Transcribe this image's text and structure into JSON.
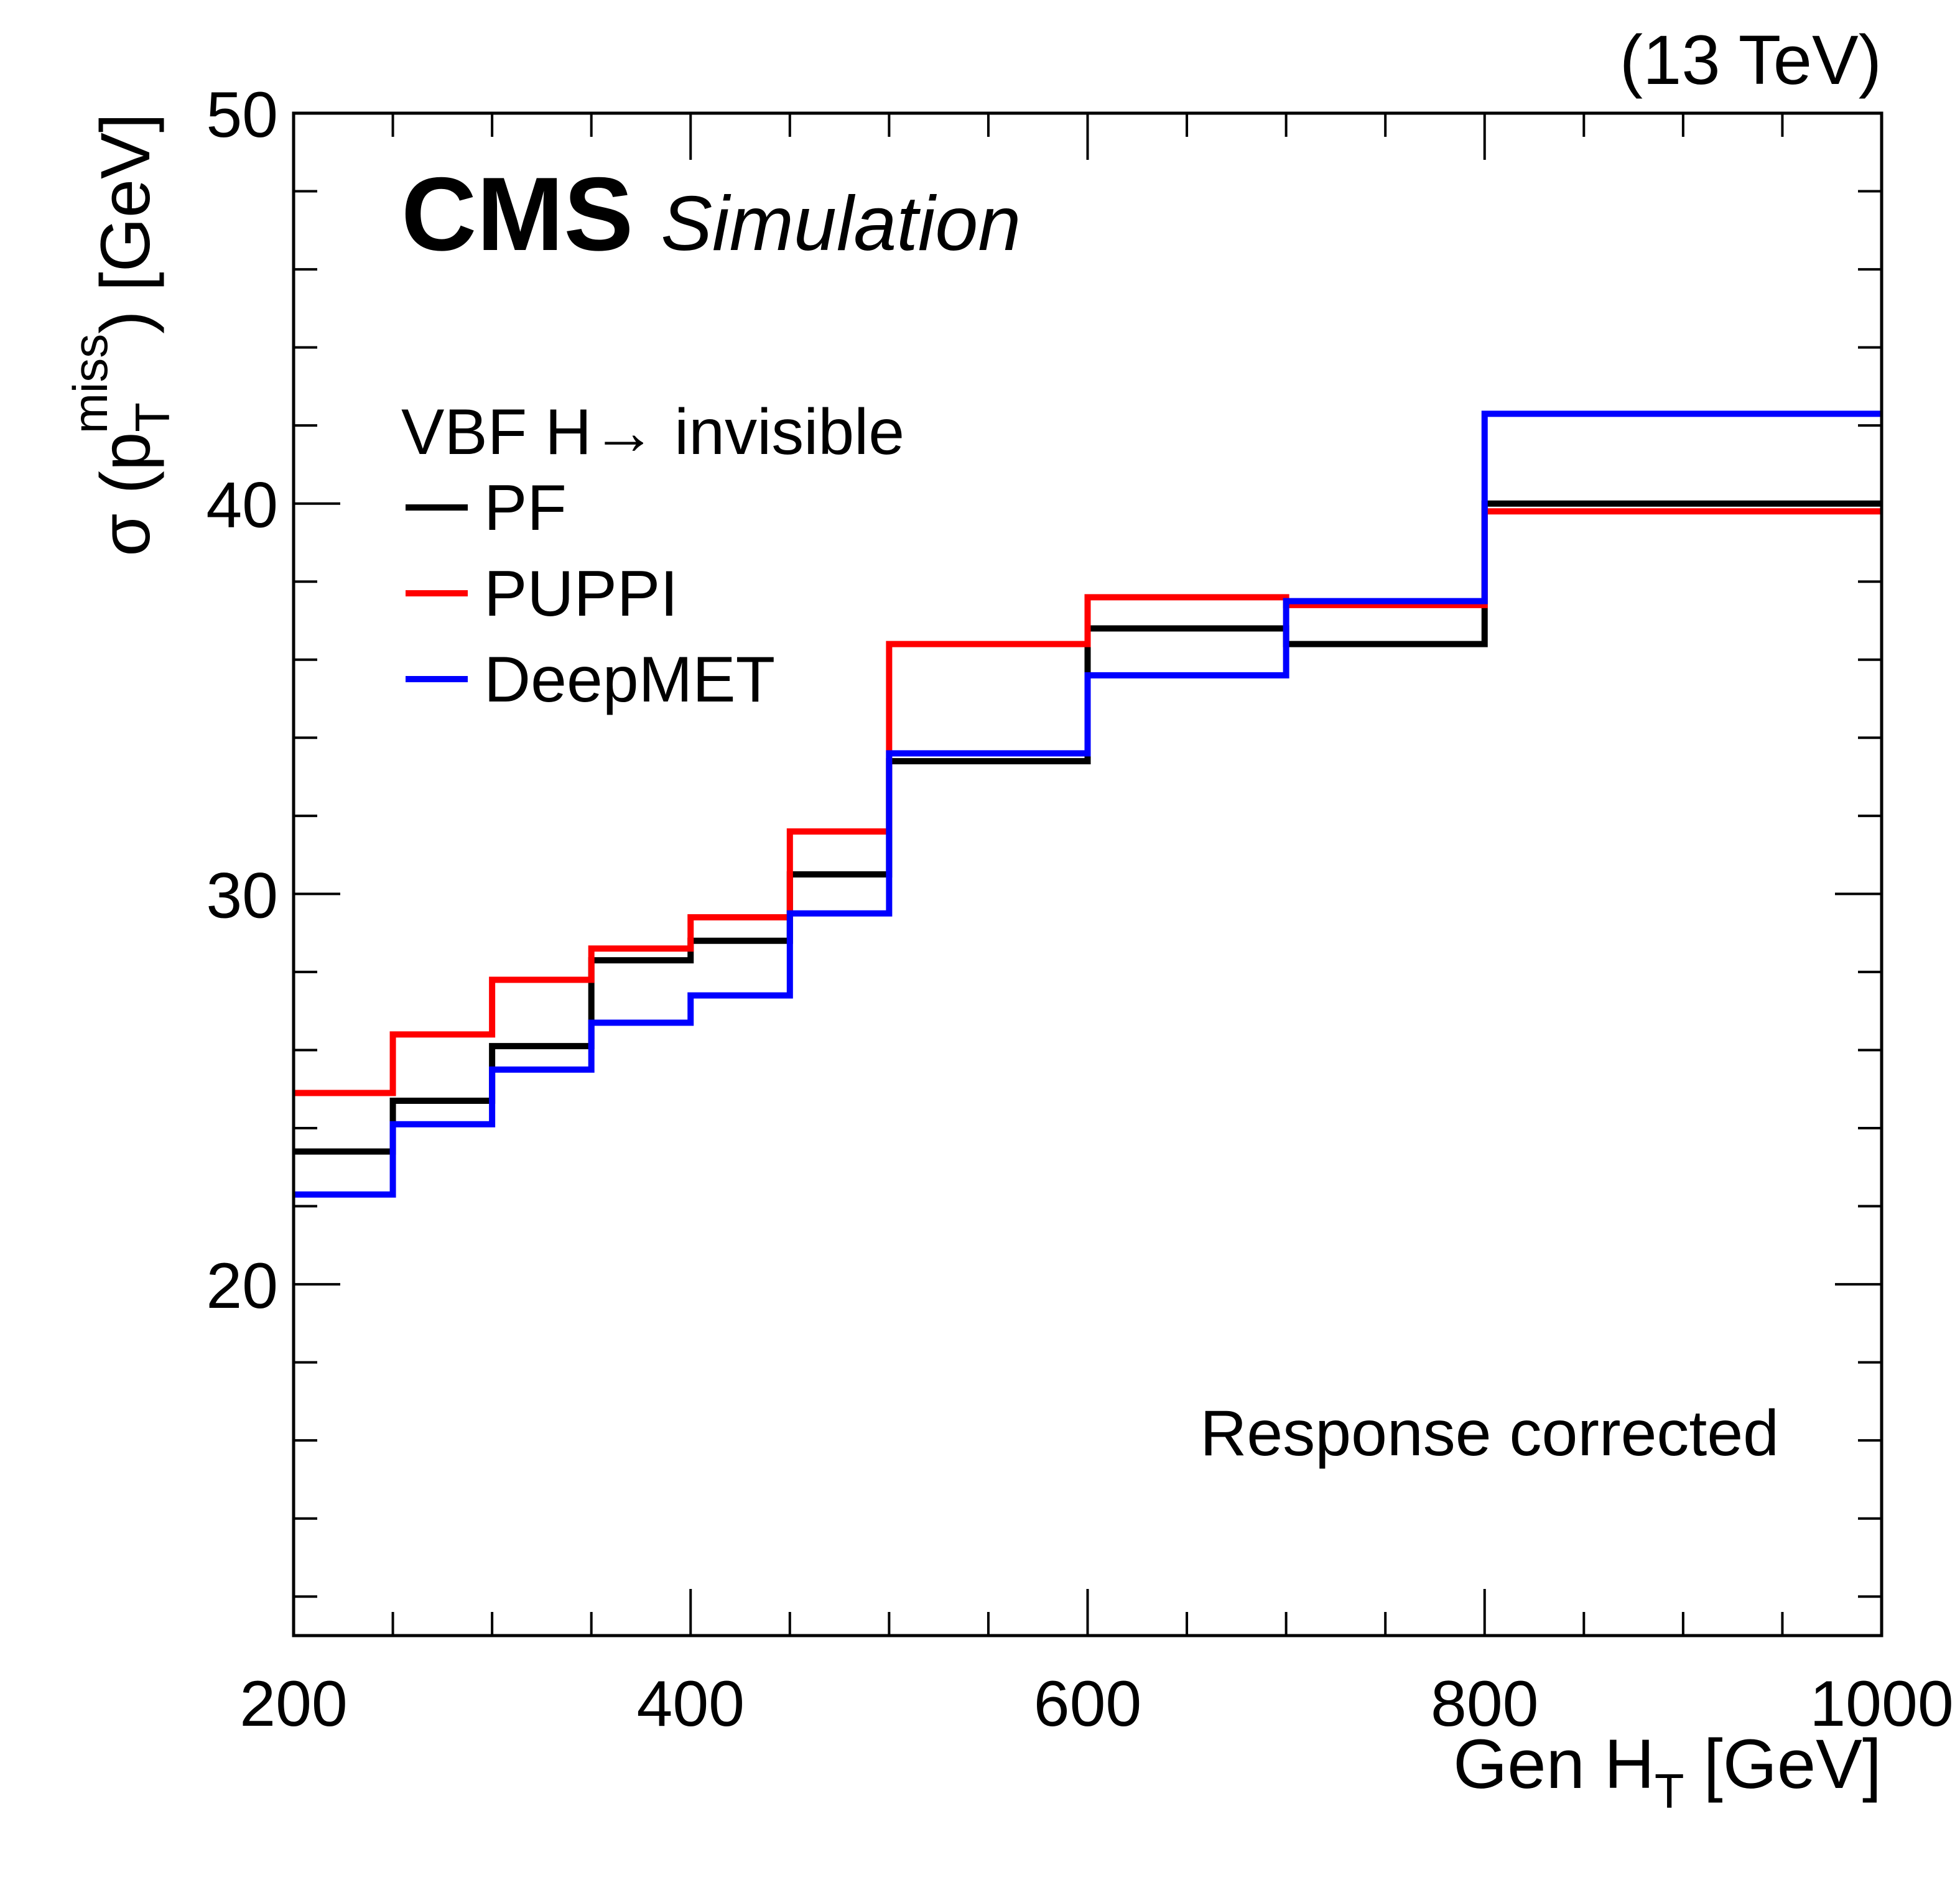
{
  "chart_data": {
    "type": "line",
    "style": "step-histogram",
    "title": "",
    "experiment_label": "CMS",
    "experiment_sublabel": "Simulation",
    "energy_label": "(13 TeV)",
    "process_label": "VBF H→ invisible",
    "annotation": "Response corrected",
    "xlabel": {
      "main": "Gen H",
      "sub": "T",
      "unit": " [GeV]"
    },
    "ylabel": {
      "prefix": "σ (p",
      "sub": "T",
      "sup": "miss",
      "suffix": ") [GeV]"
    },
    "xlim": [
      200,
      1000
    ],
    "ylim": [
      11,
      50
    ],
    "x_major_ticks": [
      200,
      400,
      600,
      800,
      1000
    ],
    "x_tick_labels": [
      "200",
      "400",
      "600",
      "800",
      "1000"
    ],
    "x_minor_step": 50,
    "y_major_ticks": [
      20,
      30,
      40,
      50
    ],
    "y_tick_labels": [
      "20",
      "30",
      "40",
      "50"
    ],
    "y_minor_step": 2,
    "grid": false,
    "legend_position": "top-left",
    "bin_edges": [
      200,
      250,
      300,
      350,
      400,
      450,
      500,
      600,
      700,
      800,
      1000
    ],
    "series": [
      {
        "name": "PF",
        "color": "#000000",
        "values": [
          23.4,
          24.7,
          26.1,
          28.3,
          28.8,
          30.5,
          33.4,
          36.8,
          36.4,
          40.0
        ]
      },
      {
        "name": "PUPPI",
        "color": "#ff0000",
        "values": [
          24.9,
          26.4,
          27.8,
          28.6,
          29.4,
          31.6,
          36.4,
          37.6,
          37.4,
          39.8
        ]
      },
      {
        "name": "DeepMET",
        "color": "#0000ff",
        "values": [
          22.3,
          24.1,
          25.5,
          26.7,
          27.4,
          29.5,
          33.6,
          35.6,
          37.5,
          42.3
        ]
      }
    ]
  }
}
